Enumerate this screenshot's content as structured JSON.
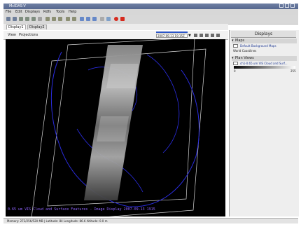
{
  "window": {
    "title": "McIDAS-V"
  },
  "menu": [
    "File",
    "Edit",
    "Displays",
    "Rdfs",
    "Tools",
    "Help"
  ],
  "tabs": [
    "Display1",
    "Display2"
  ],
  "subbar": {
    "view_label": "View",
    "projections_label": "Projections",
    "time": "2007-09-13 19:15Z",
    "caret": "▼"
  },
  "map": {
    "overlay_caption": "0.65 um VIS Cloud and Surface Features - Image Display 2007-09-13 1915"
  },
  "right_panel": {
    "header": "Displays",
    "sections": [
      {
        "title": "Maps",
        "entry": "Default Background Maps",
        "subentry": "World Coastlines"
      },
      {
        "title": "Plan Views",
        "entry": "ch1-0.65 um VIS Cloud and Surf...",
        "scale_min": "0",
        "scale_max": "255"
      }
    ]
  },
  "status": {
    "text": "Memory: 272/256/520 MB | Latitude: 84  Longitude: 86.6  Altitude: 0.0 m"
  },
  "colors": {
    "title_bar": "#5b6c92",
    "map_bg": "#000000",
    "coastline": "#2a2ce0",
    "caption_purple": "#8f64ff"
  }
}
